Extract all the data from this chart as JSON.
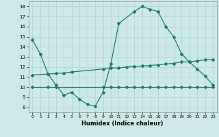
{
  "xlabel": "Humidex (Indice chaleur)",
  "bg_color": "#cce9e7",
  "grid_color": "#aad4d1",
  "line_color": "#1a7a6e",
  "xlim": [
    -0.5,
    23.5
  ],
  "ylim": [
    7.5,
    18.5
  ],
  "yticks": [
    8,
    9,
    10,
    11,
    12,
    13,
    14,
    15,
    16,
    17,
    18
  ],
  "xticks": [
    0,
    1,
    2,
    3,
    4,
    5,
    6,
    7,
    8,
    9,
    10,
    11,
    12,
    13,
    14,
    15,
    16,
    17,
    18,
    19,
    20,
    21,
    22,
    23
  ],
  "series1_x": [
    0,
    1,
    2,
    3,
    4,
    5,
    6,
    7,
    8,
    9,
    10,
    11,
    13,
    14,
    15,
    16,
    17,
    18,
    19,
    20,
    21,
    22,
    23
  ],
  "series1_y": [
    14.7,
    13.3,
    11.3,
    10.2,
    9.2,
    9.5,
    8.8,
    8.3,
    8.1,
    9.5,
    12.3,
    16.3,
    17.5,
    18.0,
    17.7,
    17.5,
    16.0,
    15.0,
    13.3,
    12.5,
    11.8,
    11.1,
    10.2
  ],
  "series2_x": [
    0,
    2,
    3,
    4,
    5,
    9,
    10,
    11,
    12,
    13,
    14,
    15,
    16,
    17,
    18,
    19,
    20,
    21,
    22,
    23
  ],
  "series2_y": [
    11.2,
    11.3,
    11.35,
    11.4,
    11.5,
    11.8,
    11.9,
    11.9,
    12.0,
    12.05,
    12.1,
    12.15,
    12.2,
    12.3,
    12.35,
    12.5,
    12.5,
    12.6,
    12.7,
    12.75
  ],
  "series3_x": [
    0,
    2,
    3,
    9,
    10,
    11,
    12,
    13,
    14,
    15,
    16,
    17,
    18,
    19,
    20,
    21,
    22,
    23
  ],
  "series3_y": [
    10.0,
    10.0,
    10.0,
    10.0,
    10.0,
    10.0,
    10.0,
    10.0,
    10.0,
    10.0,
    10.0,
    10.0,
    10.0,
    10.0,
    10.0,
    10.0,
    10.0,
    10.0
  ],
  "markersize": 2.0,
  "linewidth": 0.9
}
